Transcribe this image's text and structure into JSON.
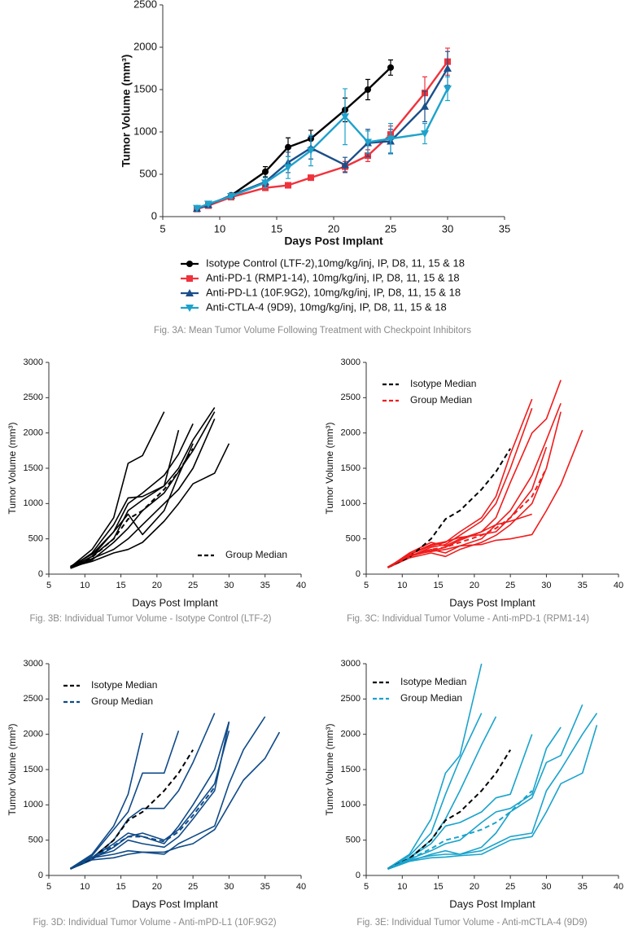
{
  "chart_data": [
    {
      "type": "line",
      "xlabel": "Days Post Implant",
      "ylabel": "Tumor Volume (mm³)",
      "caption": "Fig. 3A: Mean Tumor Volume Following Treatment with Checkpoint Inhibitors",
      "xlim": [
        5,
        35
      ],
      "xticks": [
        5,
        10,
        15,
        20,
        25,
        30,
        35
      ],
      "ylim": [
        0,
        2500
      ],
      "yticks": [
        0,
        500,
        1000,
        1500,
        2000,
        2500
      ],
      "x": [
        8,
        9,
        11,
        14,
        16,
        18,
        21,
        23,
        25,
        28,
        30
      ],
      "series": [
        {
          "name": "Isotype Control (LTF-2),10mg/kg/inj, IP, D8, 11, 15 & 18",
          "color": "#000000",
          "marker": "circle",
          "values": [
            95,
            135,
            250,
            530,
            820,
            920,
            1260,
            1500,
            1760,
            null,
            null
          ],
          "errors": [
            10,
            15,
            25,
            60,
            110,
            100,
            140,
            120,
            90,
            null,
            null
          ]
        },
        {
          "name": "Anti-PD-1 (RMP1-14), 10mg/kg/inj, IP,  D8, 11, 15 & 18",
          "color": "#f0323c",
          "marker": "square",
          "values": [
            90,
            130,
            230,
            340,
            370,
            460,
            590,
            720,
            970,
            1460,
            1830
          ],
          "errors": [
            10,
            15,
            20,
            30,
            25,
            25,
            60,
            70,
            100,
            190,
            160
          ]
        },
        {
          "name": "Anti-PD-L1 (10F.9G2), 10mg/kg/inj, IP,  D8, 11, 15 & 18",
          "color": "#1b4f8a",
          "marker": "triangle-up",
          "values": [
            95,
            140,
            250,
            410,
            640,
            810,
            610,
            870,
            890,
            1300,
            1750
          ],
          "errors": [
            10,
            15,
            20,
            50,
            120,
            130,
            90,
            160,
            140,
            180,
            200
          ]
        },
        {
          "name": "Anti-CTLA-4 (9D9), 10mg/kg/inj, IP, D8, 11, 15 & 18",
          "color": "#1ea2cc",
          "marker": "triangle-down",
          "values": [
            100,
            150,
            240,
            400,
            580,
            780,
            1180,
            880,
            920,
            980,
            1510
          ],
          "errors": [
            10,
            15,
            20,
            60,
            130,
            180,
            330,
            130,
            180,
            120,
            140
          ]
        }
      ]
    },
    {
      "type": "line",
      "xlabel": "Days Post Implant",
      "ylabel": "Tumor Volume (mm³)",
      "caption": "Fig. 3B: Individual Tumor Volume - Isotype Control (LTF-2)",
      "line_color": "#000000",
      "xlim": [
        5,
        40
      ],
      "xticks": [
        5,
        10,
        15,
        20,
        25,
        30,
        35,
        40
      ],
      "ylim": [
        0,
        3000
      ],
      "yticks": [
        0,
        500,
        1000,
        1500,
        2000,
        2500,
        3000
      ],
      "x": [
        8,
        11,
        14,
        16,
        18,
        21,
        23,
        25,
        28,
        30
      ],
      "series": [
        {
          "values": [
            100,
            350,
            800,
            1570,
            1680,
            2300,
            null,
            null,
            null,
            null
          ]
        },
        {
          "values": [
            90,
            300,
            700,
            1080,
            1100,
            1250,
            2040,
            null,
            null,
            null
          ]
        },
        {
          "values": [
            110,
            280,
            600,
            1000,
            1150,
            1400,
            1700,
            2130,
            null,
            null
          ]
        },
        {
          "values": [
            100,
            250,
            500,
            900,
            1050,
            1250,
            1500,
            1900,
            2360,
            null
          ]
        },
        {
          "values": [
            80,
            200,
            450,
            650,
            900,
            1150,
            1450,
            1750,
            2300,
            null
          ]
        },
        {
          "values": [
            90,
            220,
            350,
            500,
            700,
            1000,
            1200,
            1500,
            2200,
            null
          ]
        },
        {
          "values": [
            100,
            180,
            300,
            350,
            450,
            750,
            1000,
            1280,
            1430,
            1850
          ]
        },
        {
          "values": [
            90,
            250,
            600,
            850,
            560,
            900,
            1400,
            1850,
            null,
            null
          ]
        },
        {
          "name": "Group Median",
          "color": "#000000",
          "dashed": true,
          "values": [
            95,
            240,
            500,
            780,
            900,
            1200,
            1450,
            1780,
            null,
            null
          ]
        }
      ]
    },
    {
      "type": "line",
      "xlabel": "Days Post Implant",
      "ylabel": "Tumor Volume (mm³)",
      "caption": "Fig. 3C: Individual Tumor Volume - Anti-mPD-1 (RPM1-14)",
      "line_color": "#f01c1c",
      "xlim": [
        5,
        40
      ],
      "xticks": [
        5,
        10,
        15,
        20,
        25,
        30,
        35,
        40
      ],
      "ylim": [
        0,
        3000
      ],
      "yticks": [
        0,
        500,
        1000,
        1500,
        2000,
        2500,
        3000
      ],
      "x": [
        8,
        11,
        14,
        16,
        18,
        21,
        23,
        25,
        28,
        30,
        32,
        35
      ],
      "series": [
        {
          "values": [
            90,
            280,
            400,
            450,
            600,
            800,
            1100,
            1700,
            2480,
            null,
            null,
            null
          ]
        },
        {
          "values": [
            100,
            250,
            380,
            420,
            550,
            750,
            1000,
            1500,
            2350,
            null,
            null,
            null
          ]
        },
        {
          "values": [
            90,
            300,
            450,
            400,
            500,
            600,
            800,
            1300,
            2000,
            2200,
            2750,
            null
          ]
        },
        {
          "values": [
            100,
            260,
            350,
            300,
            400,
            500,
            700,
            900,
            1400,
            1900,
            2420,
            null
          ]
        },
        {
          "values": [
            90,
            230,
            300,
            250,
            350,
            450,
            550,
            700,
            1000,
            1500,
            2300,
            null
          ]
        },
        {
          "values": [
            100,
            270,
            320,
            350,
            400,
            420,
            480,
            500,
            560,
            900,
            1270,
            2040
          ]
        },
        {
          "values": [
            90,
            250,
            330,
            380,
            480,
            600,
            700,
            750,
            850,
            null,
            null,
            null
          ]
        },
        {
          "values": [
            100,
            280,
            420,
            460,
            520,
            560,
            600,
            800,
            1200,
            1800,
            null,
            null
          ]
        },
        {
          "name": "Isotype Median",
          "color": "#000000",
          "dashed": true,
          "values": [
            95,
            240,
            500,
            780,
            900,
            1200,
            1450,
            1780,
            null,
            null,
            null,
            null
          ]
        },
        {
          "name": "Group Median",
          "color": "#f01c1c",
          "dashed": true,
          "values": [
            95,
            260,
            350,
            380,
            450,
            550,
            650,
            800,
            1100,
            1500,
            null,
            null
          ]
        }
      ]
    },
    {
      "type": "line",
      "xlabel": "Days Post Implant",
      "ylabel": "Tumor Volume (mm³)",
      "caption": "Fig. 3D: Individual Tumor Volume - Anti-mPD-L1 (10F.9G2)",
      "line_color": "#0f4a88",
      "xlim": [
        5,
        40
      ],
      "xticks": [
        5,
        10,
        15,
        20,
        25,
        30,
        35,
        40
      ],
      "ylim": [
        0,
        3000
      ],
      "yticks": [
        0,
        500,
        1000,
        1500,
        2000,
        2500,
        3000
      ],
      "x": [
        8,
        11,
        14,
        16,
        18,
        21,
        23,
        25,
        28,
        30,
        32,
        35,
        37
      ],
      "series": [
        {
          "values": [
            100,
            300,
            700,
            1150,
            2020,
            null,
            null,
            null,
            null,
            null,
            null,
            null,
            null
          ]
        },
        {
          "values": [
            90,
            280,
            650,
            900,
            1450,
            1450,
            2050,
            null,
            null,
            null,
            null,
            null,
            null
          ]
        },
        {
          "values": [
            100,
            250,
            500,
            800,
            950,
            950,
            1200,
            1600,
            2300,
            null,
            null,
            null,
            null
          ]
        },
        {
          "values": [
            90,
            250,
            450,
            600,
            550,
            450,
            700,
            1000,
            1500,
            2180,
            null,
            null,
            null
          ]
        },
        {
          "values": [
            100,
            230,
            400,
            550,
            600,
            500,
            650,
            900,
            1300,
            2050,
            null,
            null,
            null
          ]
        },
        {
          "values": [
            90,
            260,
            350,
            500,
            450,
            400,
            550,
            800,
            1200,
            2170,
            null,
            null,
            null
          ]
        },
        {
          "values": [
            100,
            250,
            300,
            350,
            330,
            300,
            450,
            550,
            700,
            1300,
            1780,
            2250,
            null
          ]
        },
        {
          "values": [
            90,
            220,
            250,
            300,
            330,
            330,
            400,
            450,
            650,
            1000,
            1350,
            1660,
            2030
          ]
        },
        {
          "name": "Isotype Median",
          "color": "#000000",
          "dashed": true,
          "values": [
            95,
            240,
            500,
            780,
            900,
            1200,
            1450,
            1780,
            null,
            null,
            null,
            null,
            null
          ]
        },
        {
          "name": "Group Median",
          "color": "#0f4a88",
          "dashed": true,
          "values": [
            95,
            250,
            420,
            550,
            550,
            480,
            620,
            850,
            1250,
            null,
            null,
            null,
            null
          ]
        }
      ]
    },
    {
      "type": "line",
      "xlabel": "Days Post Implant",
      "ylabel": "Tumor Volume (mm³)",
      "caption": "Fig. 3E: Individual Tumor Volume - Anti-mCTLA-4 (9D9)",
      "line_color": "#1aa3cc",
      "xlim": [
        5,
        40
      ],
      "xticks": [
        5,
        10,
        15,
        20,
        25,
        30,
        35,
        40
      ],
      "ylim": [
        0,
        3000
      ],
      "yticks": [
        0,
        500,
        1000,
        1500,
        2000,
        2500,
        3000
      ],
      "x": [
        8,
        11,
        14,
        16,
        18,
        21,
        23,
        25,
        28,
        30,
        32,
        35,
        37
      ],
      "series": [
        {
          "values": [
            100,
            300,
            800,
            1450,
            1700,
            3000,
            null,
            null,
            null,
            null,
            null,
            null,
            null
          ]
        },
        {
          "values": [
            90,
            280,
            600,
            1150,
            1650,
            2300,
            null,
            null,
            null,
            null,
            null,
            null,
            null
          ]
        },
        {
          "values": [
            100,
            250,
            500,
            800,
            1200,
            1850,
            2250,
            null,
            null,
            null,
            null,
            null,
            null
          ]
        },
        {
          "values": [
            90,
            250,
            450,
            700,
            750,
            900,
            1100,
            1150,
            2000,
            null,
            null,
            null,
            null
          ]
        },
        {
          "values": [
            100,
            230,
            350,
            450,
            500,
            750,
            900,
            950,
            1150,
            1800,
            2100,
            null,
            null
          ]
        },
        {
          "values": [
            90,
            200,
            300,
            350,
            300,
            400,
            600,
            900,
            1100,
            1600,
            1700,
            2420,
            null
          ]
        },
        {
          "values": [
            100,
            220,
            280,
            300,
            300,
            350,
            450,
            550,
            600,
            1200,
            1500,
            2000,
            2300
          ]
        },
        {
          "values": [
            90,
            200,
            250,
            260,
            280,
            300,
            400,
            500,
            550,
            900,
            1300,
            1450,
            2130
          ]
        },
        {
          "name": "Isotype Median",
          "color": "#000000",
          "dashed": true,
          "values": [
            95,
            240,
            500,
            780,
            900,
            1200,
            1450,
            1780,
            null,
            null,
            null,
            null,
            null
          ]
        },
        {
          "name": "Group Median",
          "color": "#1aa3cc",
          "dashed": true,
          "values": [
            95,
            230,
            380,
            500,
            550,
            650,
            750,
            900,
            1200,
            null,
            null,
            null,
            null
          ]
        }
      ]
    }
  ]
}
